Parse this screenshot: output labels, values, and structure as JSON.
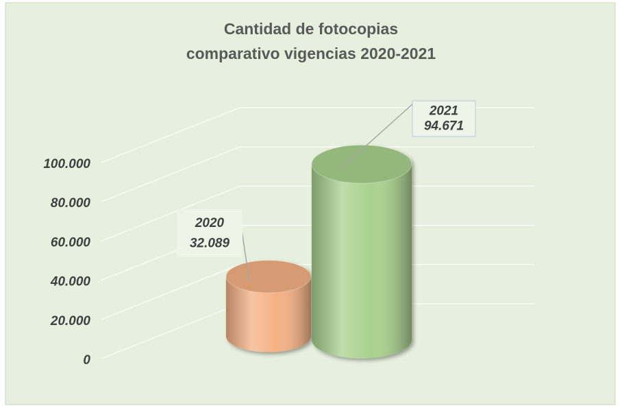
{
  "chart_data": {
    "type": "bar3d",
    "title": "Cantidad de fotocopias",
    "subtitle": "comparativo vigencias 2020-2021",
    "categories": [
      "2020",
      "2021"
    ],
    "values": [
      32089,
      94671
    ],
    "value_labels": [
      "32.089",
      "94.671"
    ],
    "colors": [
      "#f4b183",
      "#a9d18e"
    ],
    "ylim": [
      0,
      100000
    ],
    "yticks": [
      0,
      {
        "value": 20000,
        "label": "20.000"
      },
      {
        "value": 40000,
        "label": "40.000"
      },
      {
        "value": 60000,
        "label": "60.000"
      },
      {
        "value": 80000,
        "label": "80.000"
      },
      {
        "value": 100000,
        "label": "100.000"
      }
    ],
    "grid": true
  }
}
